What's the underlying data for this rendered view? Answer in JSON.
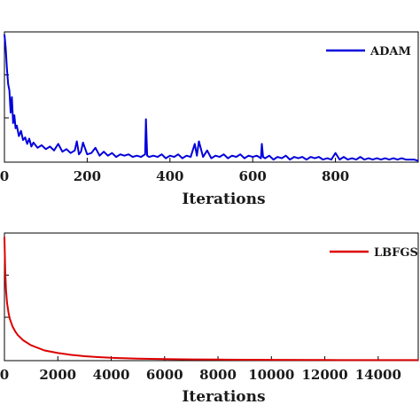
{
  "chart_data": [
    {
      "type": "line",
      "xlabel": "Iterations",
      "ylabel": "",
      "xlim": [
        0,
        1000
      ],
      "xticks": [
        0,
        200,
        400,
        600,
        800
      ],
      "yticks": [],
      "grid": false,
      "legend_position": "top-right",
      "series": [
        {
          "name": "ADAM",
          "color": "#0000dd",
          "x": [
            0,
            3,
            6,
            9,
            12,
            15,
            18,
            21,
            24,
            27,
            30,
            35,
            40,
            45,
            50,
            55,
            60,
            65,
            70,
            80,
            90,
            100,
            110,
            120,
            130,
            140,
            150,
            160,
            170,
            175,
            180,
            185,
            190,
            200,
            210,
            220,
            230,
            240,
            250,
            260,
            270,
            280,
            290,
            300,
            310,
            320,
            330,
            340,
            342,
            345,
            350,
            360,
            370,
            380,
            390,
            400,
            410,
            420,
            430,
            440,
            450,
            460,
            465,
            470,
            480,
            490,
            500,
            510,
            520,
            530,
            540,
            550,
            560,
            570,
            580,
            590,
            600,
            610,
            620,
            622,
            625,
            630,
            640,
            650,
            660,
            670,
            680,
            690,
            700,
            710,
            720,
            730,
            740,
            750,
            760,
            770,
            780,
            790,
            800,
            810,
            820,
            830,
            840,
            850,
            860,
            870,
            880,
            890,
            900,
            910,
            920,
            930,
            940,
            950,
            960,
            970,
            980,
            990,
            1000
          ],
          "y": [
            0.98,
            0.88,
            0.72,
            0.6,
            0.55,
            0.38,
            0.5,
            0.3,
            0.36,
            0.26,
            0.28,
            0.2,
            0.24,
            0.17,
            0.19,
            0.14,
            0.18,
            0.12,
            0.15,
            0.11,
            0.13,
            0.1,
            0.12,
            0.09,
            0.14,
            0.08,
            0.1,
            0.07,
            0.09,
            0.16,
            0.06,
            0.08,
            0.15,
            0.06,
            0.07,
            0.11,
            0.05,
            0.08,
            0.05,
            0.07,
            0.04,
            0.06,
            0.05,
            0.06,
            0.04,
            0.05,
            0.04,
            0.06,
            0.33,
            0.05,
            0.04,
            0.05,
            0.04,
            0.06,
            0.03,
            0.05,
            0.04,
            0.06,
            0.03,
            0.05,
            0.04,
            0.14,
            0.05,
            0.16,
            0.04,
            0.09,
            0.03,
            0.05,
            0.04,
            0.06,
            0.03,
            0.05,
            0.04,
            0.06,
            0.03,
            0.05,
            0.04,
            0.05,
            0.03,
            0.14,
            0.04,
            0.03,
            0.05,
            0.02,
            0.04,
            0.03,
            0.05,
            0.02,
            0.04,
            0.03,
            0.04,
            0.02,
            0.04,
            0.03,
            0.04,
            0.02,
            0.03,
            0.02,
            0.07,
            0.02,
            0.04,
            0.02,
            0.03,
            0.02,
            0.04,
            0.02,
            0.03,
            0.02,
            0.03,
            0.02,
            0.03,
            0.02,
            0.03,
            0.02,
            0.03,
            0.02,
            0.02,
            0.02,
            0.01
          ]
        }
      ]
    },
    {
      "type": "line",
      "xlabel": "Iterations",
      "ylabel": "",
      "xlim": [
        0,
        15500
      ],
      "xticks": [
        0,
        2000,
        4000,
        6000,
        8000,
        10000,
        12000,
        14000
      ],
      "yticks": [],
      "grid": false,
      "legend_position": "top-right",
      "series": [
        {
          "name": "LBFGS",
          "color": "#dd0000",
          "x": [
            0,
            30,
            60,
            100,
            150,
            200,
            300,
            400,
            500,
            700,
            1000,
            1500,
            2000,
            2500,
            3000,
            3500,
            4000,
            5000,
            6000,
            7000,
            8000,
            9000,
            10000,
            12000,
            14000,
            15500
          ],
          "y": [
            0.97,
            0.7,
            0.55,
            0.45,
            0.38,
            0.33,
            0.27,
            0.23,
            0.2,
            0.16,
            0.12,
            0.08,
            0.06,
            0.045,
            0.035,
            0.028,
            0.022,
            0.016,
            0.012,
            0.01,
            0.008,
            0.007,
            0.006,
            0.005,
            0.004,
            0.004
          ]
        }
      ]
    }
  ]
}
